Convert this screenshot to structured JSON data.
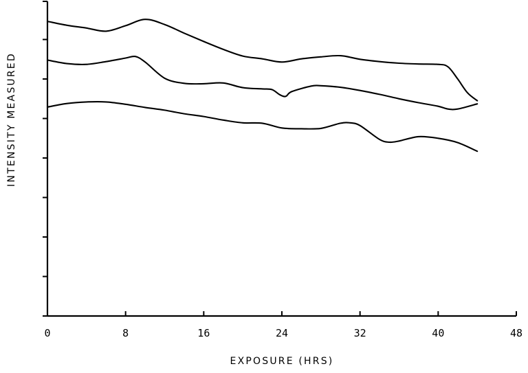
{
  "chart_data": {
    "type": "line",
    "title": "",
    "xlabel": "EXPOSURE (HRS)",
    "ylabel": "INTENSITY MEASURED",
    "xlim": [
      0,
      48
    ],
    "ylim": [
      0,
      8
    ],
    "grid": false,
    "x_ticks": [
      0,
      8,
      16,
      24,
      32,
      40,
      48
    ],
    "x_tick_labels": [
      "0",
      "8",
      "16",
      "24",
      "32",
      "40",
      "48"
    ],
    "y_ticks": [
      0,
      1,
      2,
      3,
      4,
      5,
      6,
      7,
      8
    ],
    "series": [
      {
        "x": [
          0,
          2,
          4,
          6,
          8,
          10,
          12,
          14,
          16,
          18,
          20,
          22,
          24,
          26,
          28,
          30,
          32,
          34,
          36,
          38,
          40,
          41,
          42,
          43,
          44
        ],
        "y": [
          7.46,
          7.36,
          7.29,
          7.21,
          7.35,
          7.51,
          7.38,
          7.16,
          6.95,
          6.75,
          6.58,
          6.51,
          6.43,
          6.51,
          6.56,
          6.59,
          6.5,
          6.44,
          6.4,
          6.38,
          6.37,
          6.31,
          6.0,
          5.65,
          5.45
        ]
      },
      {
        "x": [
          0,
          2,
          4,
          6,
          8,
          9,
          10,
          12,
          14,
          16,
          18,
          20,
          22,
          23,
          23.8,
          24.4,
          25,
          27,
          28,
          30,
          32,
          34,
          36,
          38,
          40,
          41,
          42,
          44
        ],
        "y": [
          6.48,
          6.39,
          6.37,
          6.44,
          6.53,
          6.57,
          6.43,
          6.02,
          5.89,
          5.88,
          5.9,
          5.78,
          5.75,
          5.73,
          5.6,
          5.56,
          5.68,
          5.82,
          5.83,
          5.79,
          5.71,
          5.61,
          5.5,
          5.4,
          5.31,
          5.24,
          5.24,
          5.37
        ]
      },
      {
        "x": [
          0,
          2,
          4,
          6,
          8,
          10,
          12,
          14,
          16,
          18,
          20,
          22,
          24,
          26,
          28,
          30,
          31,
          32,
          34,
          35,
          36,
          38,
          40,
          42,
          44
        ],
        "y": [
          5.29,
          5.38,
          5.42,
          5.42,
          5.36,
          5.28,
          5.21,
          5.12,
          5.05,
          4.96,
          4.89,
          4.88,
          4.76,
          4.74,
          4.75,
          4.88,
          4.89,
          4.82,
          4.47,
          4.4,
          4.43,
          4.54,
          4.5,
          4.39,
          4.17
        ]
      }
    ]
  }
}
